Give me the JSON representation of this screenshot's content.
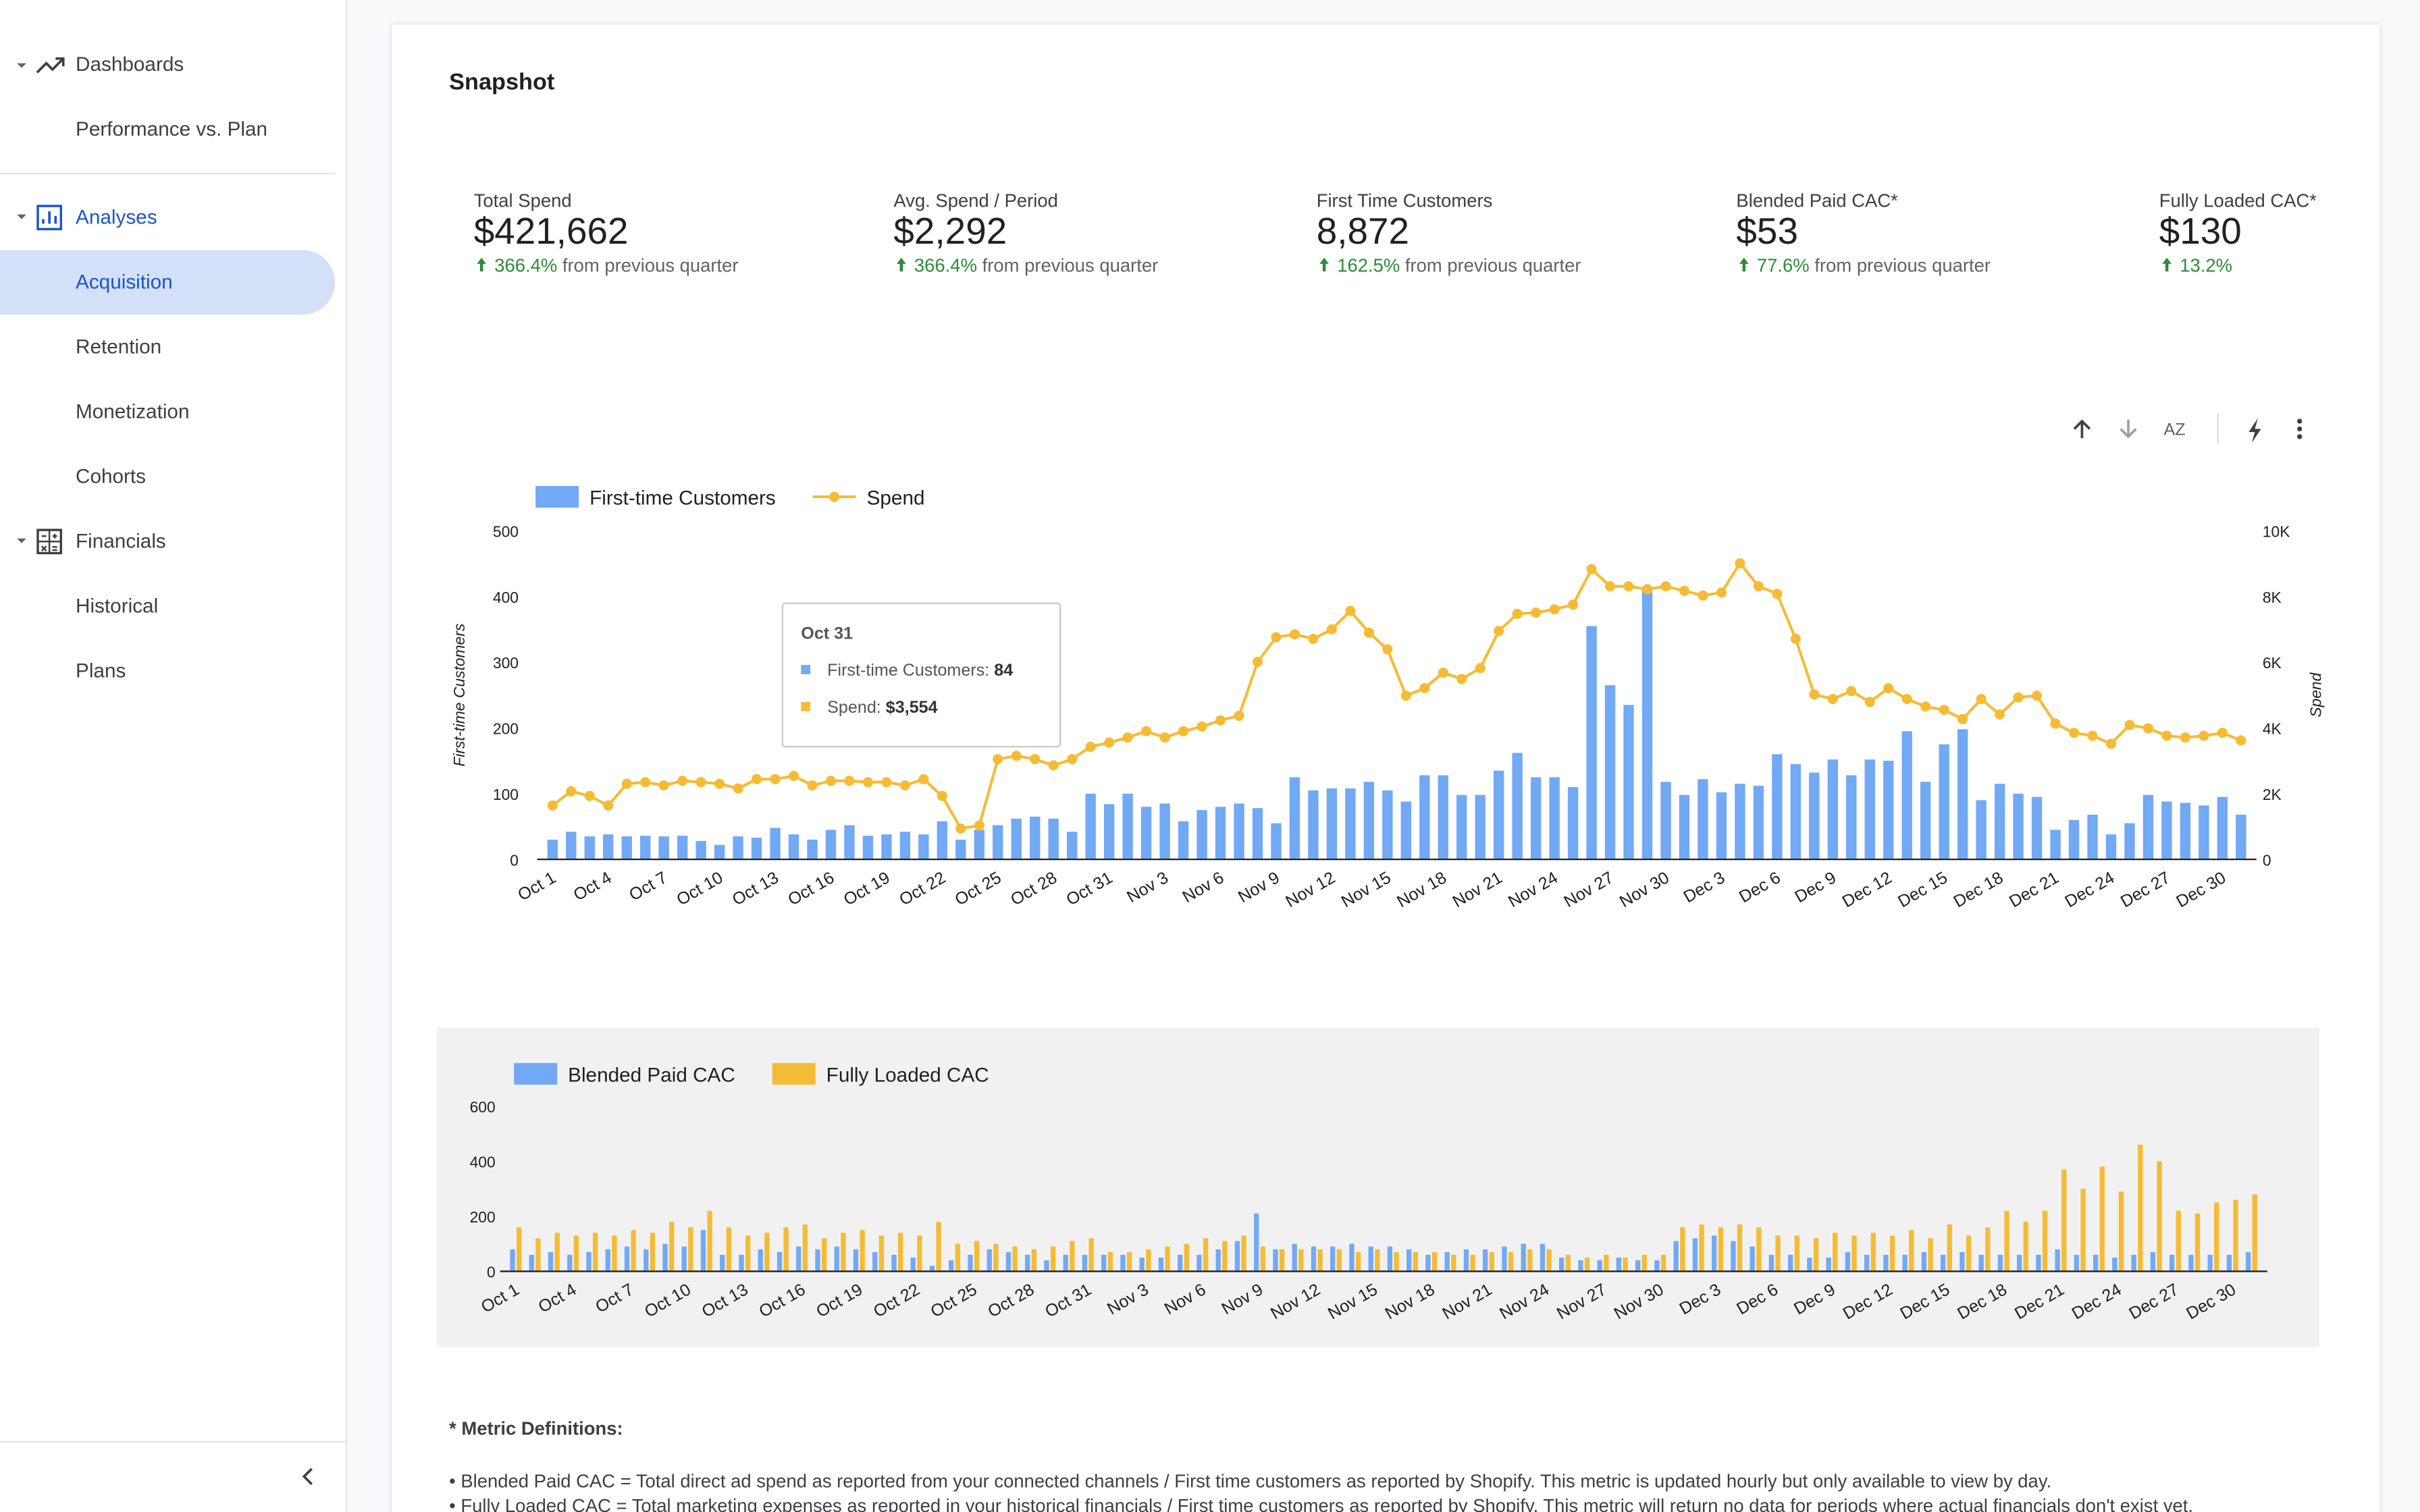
{
  "sidebar": {
    "dashboards": "Dashboards",
    "performance": "Performance vs. Plan",
    "analyses": "Analyses",
    "acquisition": "Acquisition",
    "retention": "Retention",
    "monetization": "Monetization",
    "cohorts": "Cohorts",
    "financials": "Financials",
    "historical": "Historical",
    "plans": "Plans"
  },
  "page": {
    "title": "Snapshot"
  },
  "kpis": [
    {
      "label": "Total Spend",
      "value": "$421,662",
      "change": "366.4%",
      "note": "from previous quarter"
    },
    {
      "label": "Avg. Spend / Period",
      "value": "$2,292",
      "change": "366.4%",
      "note": "from previous quarter"
    },
    {
      "label": "First Time Customers",
      "value": "8,872",
      "change": "162.5%",
      "note": "from previous quarter"
    },
    {
      "label": "Blended Paid CAC*",
      "value": "$53",
      "change": "77.6%",
      "note": "from previous quarter"
    },
    {
      "label": "Fully Loaded CAC*",
      "value": "$130",
      "change": "13.2%"
    }
  ],
  "toolbar": {
    "sort_label": "AZ"
  },
  "chart_data": [
    {
      "type": "bar",
      "y_label": "First-time Customers",
      "y2_label": "Spend",
      "categories": [
        "Oct 1",
        null,
        null,
        "Oct 4",
        null,
        null,
        "Oct 7",
        null,
        null,
        "Oct 10",
        null,
        null,
        "Oct 13",
        null,
        null,
        "Oct 16",
        null,
        null,
        "Oct 19",
        null,
        null,
        "Oct 22",
        null,
        null,
        "Oct 25",
        null,
        null,
        "Oct 28",
        null,
        null,
        "Oct 31",
        null,
        null,
        "Nov 3",
        null,
        null,
        "Nov 6",
        null,
        null,
        "Nov 9",
        null,
        null,
        "Nov 12",
        null,
        null,
        "Nov 15",
        null,
        null,
        "Nov 18",
        null,
        null,
        "Nov 21",
        null,
        null,
        "Nov 24",
        null,
        null,
        "Nov 27",
        null,
        null,
        "Nov 30",
        null,
        null,
        "Dec 3",
        null,
        null,
        "Dec 6",
        null,
        null,
        "Dec 9",
        null,
        null,
        "Dec 12",
        null,
        null,
        "Dec 15",
        null,
        null,
        "Dec 18",
        null,
        null,
        "Dec 21",
        null,
        null,
        "Dec 24",
        null,
        null,
        "Dec 27",
        null,
        null,
        "Dec 30",
        null
      ],
      "series": [
        {
          "name": "First-time Customers",
          "color": "#72a9f5",
          "values": [
            30,
            42,
            35,
            38,
            35,
            36,
            35,
            36,
            28,
            22,
            35,
            33,
            48,
            38,
            30,
            45,
            52,
            36,
            38,
            42,
            38,
            58,
            30,
            45,
            52,
            62,
            65,
            62,
            42,
            100,
            84,
            100,
            80,
            85,
            58,
            75,
            80,
            85,
            78,
            55,
            125,
            105,
            108,
            108,
            118,
            105,
            88,
            128,
            128,
            98,
            98,
            135,
            162,
            125,
            125,
            110,
            355,
            265,
            235,
            410,
            118,
            98,
            122,
            102,
            115,
            112,
            160,
            145,
            132,
            152,
            128,
            152,
            150,
            195,
            118,
            175,
            198,
            90,
            115,
            100,
            95,
            45,
            60,
            68,
            38,
            55,
            98,
            88,
            86,
            82,
            95,
            68
          ]
        },
        {
          "name": "Spend",
          "type": "line",
          "axis": "y2",
          "color": "#f6bb35",
          "values": [
            1640,
            2070,
            1930,
            1640,
            2300,
            2350,
            2250,
            2390,
            2350,
            2300,
            2160,
            2440,
            2440,
            2540,
            2250,
            2390,
            2390,
            2350,
            2350,
            2250,
            2440,
            1930,
            940,
            1030,
            3050,
            3150,
            3050,
            2860,
            3050,
            3430,
            3554,
            3710,
            3900,
            3710,
            3900,
            4040,
            4230,
            4370,
            6010,
            6760,
            6850,
            6710,
            7000,
            7560,
            6900,
            6390,
            4980,
            5210,
            5680,
            5490,
            5820,
            6950,
            7470,
            7510,
            7610,
            7750,
            8830,
            8310,
            8310,
            8220,
            8310,
            8170,
            8030,
            8120,
            9010,
            8310,
            8080,
            6710,
            5020,
            4880,
            5120,
            4790,
            5210,
            4880,
            4650,
            4550,
            4270,
            4880,
            4410,
            4930,
            4980,
            4130,
            3850,
            3760,
            3520,
            4090,
            3990,
            3760,
            3710,
            3760,
            3850,
            3620
          ]
        }
      ],
      "ylim": [
        0,
        500
      ],
      "yticks": [
        0,
        100,
        200,
        300,
        400,
        500
      ],
      "y2lim": [
        0,
        10000
      ],
      "y2ticks": [
        0,
        {
          "value": 2000,
          "label": "2K"
        },
        {
          "value": 4000,
          "label": "4K"
        },
        {
          "value": 6000,
          "label": "6K"
        },
        {
          "value": 8000,
          "label": "8K"
        },
        {
          "value": 10000,
          "label": "10K"
        }
      ],
      "legend": "top-left",
      "tooltip": {
        "title": "Oct 31",
        "rows": [
          {
            "label": "First-time Customers: ",
            "value": "84"
          },
          {
            "label": "Spend: ",
            "value": "$3,554"
          }
        ]
      }
    },
    {
      "type": "bar",
      "categories": [
        "Oct 1",
        null,
        null,
        "Oct 4",
        null,
        null,
        "Oct 7",
        null,
        null,
        "Oct 10",
        null,
        null,
        "Oct 13",
        null,
        null,
        "Oct 16",
        null,
        null,
        "Oct 19",
        null,
        null,
        "Oct 22",
        null,
        null,
        "Oct 25",
        null,
        null,
        "Oct 28",
        null,
        null,
        "Oct 31",
        null,
        null,
        "Nov 3",
        null,
        null,
        "Nov 6",
        null,
        null,
        "Nov 9",
        null,
        null,
        "Nov 12",
        null,
        null,
        "Nov 15",
        null,
        null,
        "Nov 18",
        null,
        null,
        "Nov 21",
        null,
        null,
        "Nov 24",
        null,
        null,
        "Nov 27",
        null,
        null,
        "Nov 30",
        null,
        null,
        "Dec 3",
        null,
        null,
        "Dec 6",
        null,
        null,
        "Dec 9",
        null,
        null,
        "Dec 12",
        null,
        null,
        "Dec 15",
        null,
        null,
        "Dec 18",
        null,
        null,
        "Dec 21",
        null,
        null,
        "Dec 24",
        null,
        null,
        "Dec 27",
        null,
        null,
        "Dec 30",
        null
      ],
      "series": [
        {
          "name": "Blended Paid CAC",
          "color": "#72a9f5",
          "values": [
            80,
            60,
            70,
            60,
            70,
            80,
            90,
            80,
            100,
            90,
            150,
            60,
            60,
            80,
            70,
            90,
            80,
            90,
            80,
            70,
            60,
            50,
            20,
            40,
            60,
            80,
            70,
            60,
            40,
            60,
            60,
            60,
            60,
            50,
            50,
            60,
            60,
            80,
            110,
            210,
            80,
            100,
            90,
            90,
            100,
            90,
            90,
            80,
            60,
            70,
            80,
            80,
            90,
            100,
            100,
            50,
            40,
            40,
            50,
            40,
            40,
            110,
            120,
            130,
            110,
            90,
            60,
            60,
            50,
            50,
            70,
            60,
            60,
            60,
            70,
            60,
            70,
            60,
            60,
            60,
            60,
            80,
            60,
            60,
            50,
            60,
            70,
            60,
            60,
            60,
            60,
            70
          ]
        },
        {
          "name": "Fully Loaded CAC",
          "color": "#f6bb35",
          "values": [
            160,
            120,
            140,
            130,
            140,
            130,
            150,
            140,
            180,
            160,
            220,
            160,
            130,
            140,
            160,
            170,
            120,
            140,
            150,
            130,
            140,
            130,
            180,
            100,
            110,
            100,
            90,
            80,
            90,
            110,
            120,
            70,
            70,
            80,
            90,
            100,
            120,
            110,
            130,
            90,
            80,
            80,
            80,
            80,
            70,
            80,
            70,
            70,
            70,
            60,
            60,
            70,
            70,
            80,
            80,
            60,
            50,
            60,
            50,
            60,
            60,
            160,
            170,
            160,
            170,
            160,
            130,
            130,
            120,
            140,
            130,
            140,
            130,
            150,
            120,
            170,
            130,
            160,
            220,
            180,
            220,
            370,
            300,
            380,
            290,
            460,
            400,
            220,
            210,
            250,
            260,
            280
          ]
        }
      ],
      "ylim": [
        0,
        600
      ],
      "yticks": [
        0,
        200,
        400,
        600
      ],
      "legend": "top-left"
    }
  ],
  "definitions": {
    "title": "* Metric Definitions:",
    "items": [
      "• Blended Paid CAC = Total direct ad spend as reported from your connected channels / First time customers as reported by Shopify. This metric is updated hourly but only available to view by day.",
      "• Fully Loaded CAC = Total marketing expenses as reported in your historical financials / First time customers as reported by Shopify. This metric will return no data for periods where actual financials don't exist yet."
    ]
  }
}
